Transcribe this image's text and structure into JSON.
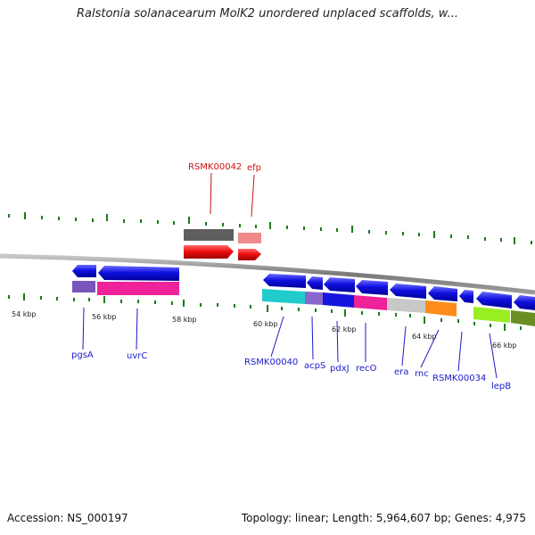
{
  "title": "Ralstonia solanacearum MolK2 unordered unplaced scaffolds, w...",
  "footer": {
    "accession": "Accession: NS_000197",
    "summary": "Topology: linear; Length: 5,964,607 bp; Genes: 4,975"
  },
  "scale_labels": [
    "54 kbp",
    "56 kbp",
    "58 kbp",
    "60 kbp",
    "62 kbp",
    "64 kbp",
    "66 kbp"
  ],
  "genes": {
    "forward_strand_labels": [
      "RSMK00042",
      "efp"
    ],
    "reverse_strand_labels": [
      "pgsA",
      "uvrC",
      "RSMK00040",
      "acpS",
      "pdxJ",
      "recO",
      "era",
      "rnc",
      "RSMK00034",
      "lepB"
    ]
  },
  "colors": {
    "arrow_blue": "#1010e0",
    "arrow_red": "#ee1111",
    "tick_green": "#1c7a1c",
    "backbone": "#808080",
    "label_blue": "#1a1acc",
    "label_red": "#cc1111"
  }
}
